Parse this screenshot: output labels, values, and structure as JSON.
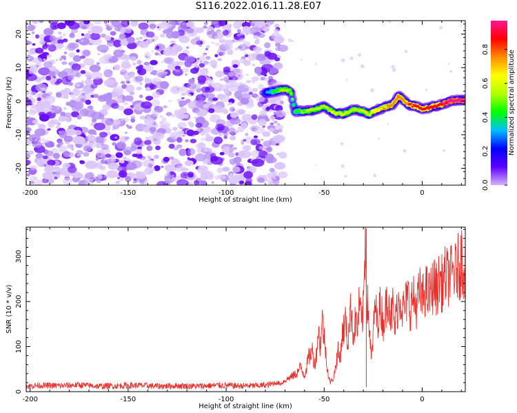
{
  "title": "S116.2022.016.11.28.E07",
  "colors": {
    "noise": "#8a2be2",
    "snr_line": "#e8302a",
    "colorbar": [
      "#d9b3ff",
      "#5b00ff",
      "#0000ff",
      "#00bfff",
      "#00ff00",
      "#b4ff00",
      "#ffff00",
      "#ff8c00",
      "#ff0000",
      "#ff1493"
    ]
  },
  "chart_data": [
    {
      "type": "heatmap",
      "title": "",
      "xlabel": "Height of straight line (km)",
      "ylabel": "Frequency (Hz)",
      "xlim": [
        -202,
        22
      ],
      "ylim": [
        -25,
        24
      ],
      "xticks": [
        -200,
        -150,
        -100,
        -50,
        0
      ],
      "yticks": [
        -20,
        -10,
        0,
        10,
        20
      ],
      "noise_region_x": [
        -202,
        -71
      ],
      "ridge": {
        "x": [
          -80,
          -75,
          -71,
          -67,
          -65,
          -60,
          -55,
          -50,
          -45,
          -40,
          -35,
          -30,
          -27,
          -25,
          -20,
          -15,
          -12,
          -10,
          -7,
          -3,
          0,
          3,
          6,
          10,
          14,
          18,
          22
        ],
        "freq": [
          2.5,
          3,
          3.5,
          3,
          -3,
          -3,
          -2.5,
          -1.5,
          -3.5,
          -3.8,
          -2.5,
          -3,
          -4,
          -3,
          -2,
          -1,
          1.5,
          0.5,
          -1,
          -1.5,
          -2.3,
          -2,
          -1.5,
          -1,
          0,
          0.3,
          0.3
        ],
        "amplitude": [
          0.25,
          0.45,
          0.55,
          0.5,
          0.45,
          0.5,
          0.55,
          0.55,
          0.6,
          0.6,
          0.55,
          0.6,
          0.6,
          0.65,
          0.7,
          0.75,
          0.8,
          0.75,
          0.8,
          0.85,
          0.85,
          0.85,
          0.85,
          0.9,
          0.95,
          1.0,
          1.0
        ]
      },
      "colorbar": {
        "label": "Normalized spectral amplitude",
        "range": [
          0,
          0.97
        ],
        "ticks": [
          "0.0",
          "0.2",
          "0.4",
          "0.6",
          "0.8"
        ],
        "tick_values": [
          0,
          0.2,
          0.4,
          0.6,
          0.8
        ]
      }
    },
    {
      "type": "line",
      "title": "",
      "xlabel": "Height of straight line (km)",
      "ylabel": "SNR (10 * v/v)",
      "xlim": [
        -202,
        22
      ],
      "ylim": [
        0,
        365
      ],
      "xticks": [
        -200,
        -150,
        -100,
        -50,
        0
      ],
      "yticks": [
        0,
        100,
        200,
        300
      ],
      "series": [
        {
          "x": [
            -202,
            -195,
            -185,
            -175,
            -165,
            -155,
            -145,
            -135,
            -125,
            -115,
            -105,
            -95,
            -85,
            -78,
            -75,
            -72,
            -70,
            -68,
            -66,
            -64,
            -62,
            -60,
            -58,
            -56,
            -55,
            -54,
            -53,
            -52,
            -51,
            -50,
            -49,
            -48,
            -47,
            -46,
            -45,
            -44,
            -43,
            -42,
            -41,
            -40,
            -39,
            -38,
            -37,
            -36,
            -35,
            -34,
            -33,
            -32,
            -31,
            -30,
            -29,
            -28.5,
            -28,
            -27,
            -26,
            -25,
            -24,
            -23,
            -22,
            -21,
            -20,
            -19,
            -18,
            -17,
            -16,
            -15,
            -14,
            -13,
            -12,
            -11,
            -10,
            -9,
            -8,
            -7,
            -6,
            -5,
            -4,
            -3,
            -2,
            -1,
            0,
            1,
            2,
            3,
            4,
            5,
            6,
            7,
            8,
            9,
            10,
            11,
            12,
            13,
            14,
            15,
            16,
            17,
            18,
            19,
            20,
            21,
            22
          ],
          "y": [
            12,
            14,
            13,
            15,
            12,
            13,
            14,
            12,
            13,
            12,
            14,
            13,
            13,
            15,
            20,
            18,
            25,
            30,
            35,
            40,
            55,
            35,
            75,
            90,
            60,
            80,
            140,
            100,
            160,
            120,
            80,
            40,
            20,
            25,
            35,
            60,
            90,
            70,
            120,
            140,
            160,
            100,
            170,
            180,
            120,
            160,
            140,
            200,
            150,
            180,
            360,
            250,
            200,
            150,
            70,
            120,
            200,
            150,
            180,
            190,
            150,
            170,
            200,
            220,
            160,
            190,
            140,
            180,
            200,
            210,
            180,
            190,
            200,
            210,
            180,
            210,
            200,
            190,
            210,
            220,
            200,
            220,
            230,
            210,
            215,
            230,
            240,
            225,
            235,
            250,
            240,
            245,
            260,
            250,
            265,
            255,
            270,
            260,
            280,
            270,
            300,
            275,
            285
          ]
        }
      ]
    }
  ]
}
